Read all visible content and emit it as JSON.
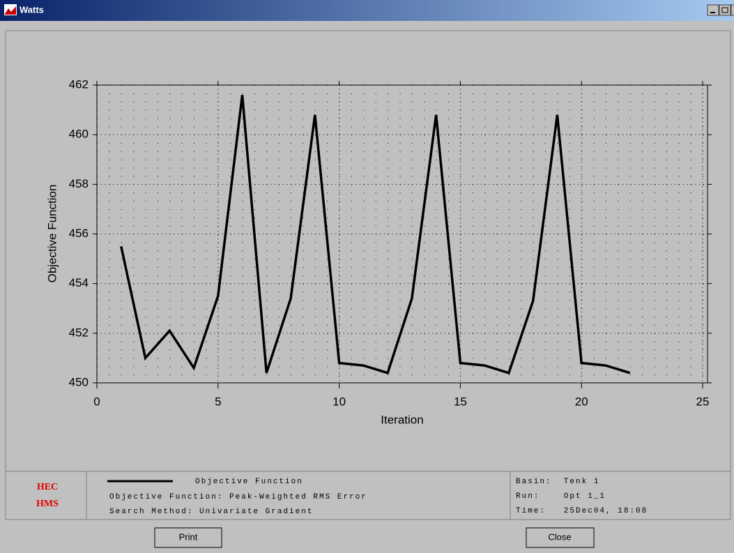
{
  "window": {
    "title": "Watts"
  },
  "chart_data": {
    "type": "line",
    "xlabel": "Iteration",
    "ylabel": "Objective Function",
    "x": [
      1,
      2,
      3,
      4,
      5,
      6,
      7,
      8,
      9,
      10,
      11,
      12,
      13,
      14,
      15,
      16,
      17,
      18,
      19,
      20,
      21,
      22
    ],
    "series": [
      {
        "name": "Objective Function",
        "color": "#000000",
        "values": [
          455.5,
          451.0,
          452.1,
          450.6,
          453.5,
          461.6,
          450.4,
          453.4,
          460.8,
          450.8,
          450.7,
          450.4,
          453.4,
          460.8,
          450.8,
          450.7,
          450.4,
          453.3,
          460.8,
          450.8,
          450.7,
          450.4
        ]
      }
    ],
    "xlim": [
      0,
      25
    ],
    "xticks": [
      0,
      5,
      10,
      15,
      20,
      25
    ],
    "ylim": [
      450,
      462
    ],
    "yticks": [
      450,
      452,
      454,
      456,
      458,
      460,
      462
    ],
    "grid": true
  },
  "legend": {
    "lines": [
      "Objective Function: Peak-Weighted RMS Error",
      "Search Method: Univariate Gradient"
    ],
    "info": [
      "Basin:  Tenk 1",
      "Run:    Opt 1_1",
      "Time:   25Dec04, 18:08"
    ]
  },
  "logo": [
    "HEC",
    "HMS"
  ],
  "buttons": [
    "Print",
    "Close"
  ]
}
